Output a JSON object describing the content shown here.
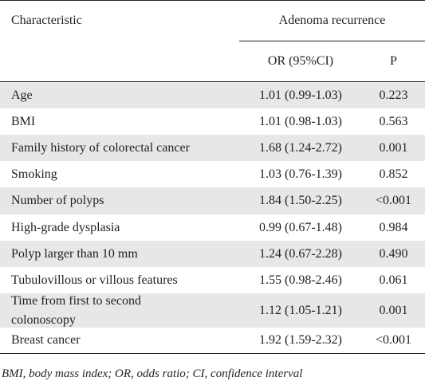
{
  "header": {
    "characteristic": "Characteristic",
    "group": "Adenoma recurrence",
    "or_col": "OR (95%CI)",
    "p_col": "P"
  },
  "rows": [
    {
      "label": "Age",
      "or": "1.01 (0.99-1.03)",
      "p": "0.223"
    },
    {
      "label": "BMI",
      "or": "1.01 (0.98-1.03)",
      "p": "0.563"
    },
    {
      "label": "Family history of colorectal cancer",
      "or": "1.68 (1.24-2.72)",
      "p": "0.001"
    },
    {
      "label": "Smoking",
      "or": "1.03 (0.76-1.39)",
      "p": "0.852"
    },
    {
      "label": "Number of polyps",
      "or": "1.84 (1.50-2.25)",
      "p": "<0.001"
    },
    {
      "label": "High-grade dysplasia",
      "or": "0.99 (0.67-1.48)",
      "p": "0.984"
    },
    {
      "label": "Polyp larger than 10 mm",
      "or": "1.24 (0.67-2.28)",
      "p": "0.490"
    },
    {
      "label": "Tubulovillous or villous features",
      "or": "1.55 (0.98-2.46)",
      "p": "0.061"
    },
    {
      "label": "Time from first to second colonoscopy",
      "or": "1.12 (1.05-1.21)",
      "p": "0.001"
    },
    {
      "label": "Breast cancer",
      "or": "1.92 (1.59-2.32)",
      "p": "<0.001"
    }
  ],
  "footnote": "BMI, body mass index; OR, odds ratio; CI, confidence interval",
  "colors": {
    "shade": "#e6e7e8",
    "text": "#231f20",
    "rule": "#231f20"
  }
}
